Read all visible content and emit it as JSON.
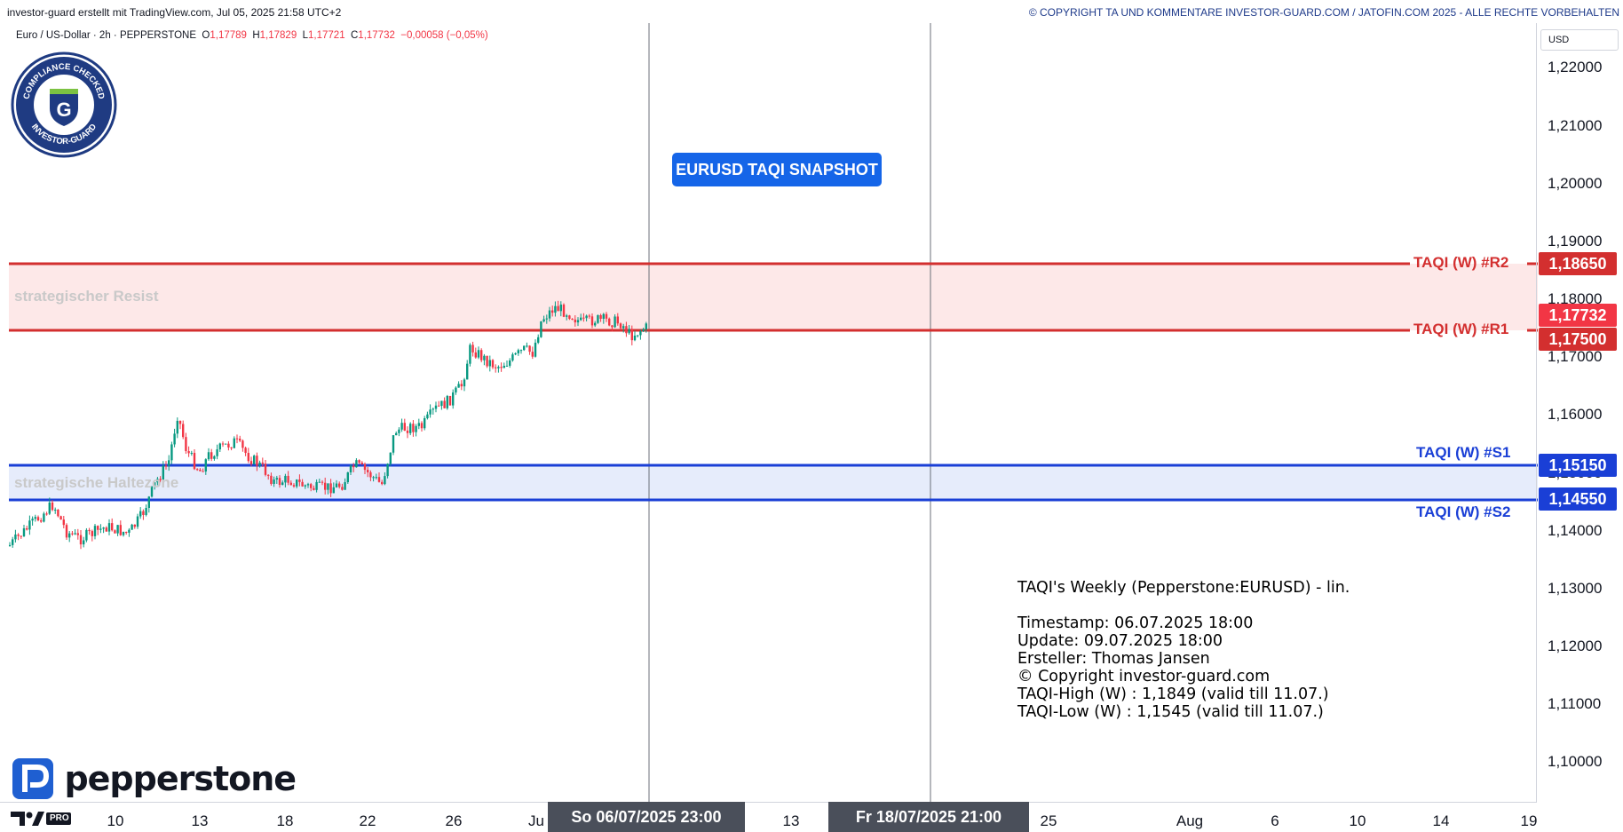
{
  "header": {
    "left_text": "investor-guard erstellt mit TradingView.com, Jul 05, 2025 21:58 UTC+2",
    "right_text": "© COPYRIGHT TA UND KOMMENTARE INVESTOR-GUARD.COM / JATOFIN.COM 2025 - ALLE RECHTE VORBEHALTEN"
  },
  "symbol": {
    "name": "Euro / US-Dollar · 2h · PEPPERSTONE",
    "o_label": "O",
    "o": "1,17789",
    "h_label": "H",
    "h": "1,17829",
    "l_label": "L",
    "l": "1,17721",
    "c_label": "C",
    "c": "1,17732",
    "change": "−0,00058 (−0,05%)"
  },
  "snapshot_button": "EURUSD TAQI SNAPSHOT",
  "zones": {
    "resist_label": "strategischer Resist",
    "support_label": "strategische Haltezone"
  },
  "levels": [
    {
      "label": "TAQI (W) #R2",
      "price": "1,18650",
      "color": "#d32f2f"
    },
    {
      "label": "TAQI (W) #R1",
      "price": "1,17500",
      "color": "#d32f2f"
    },
    {
      "label": "TAQI (W) #S1",
      "price": "1,15150",
      "color": "#1a3fd6"
    },
    {
      "label": "TAQI (W) #S2",
      "price": "1,14550",
      "color": "#1a3fd6"
    }
  ],
  "last_price": {
    "value": "1,17732",
    "color": "#f23645"
  },
  "yaxis": {
    "currency": "USD",
    "ticks": [
      "1,22000",
      "1,21000",
      "1,20000",
      "1,19000",
      "1,18000",
      "1,17000",
      "1,16000",
      "1,15000",
      "1,14000",
      "1,13000",
      "1,12000",
      "1,11000",
      "1,10000"
    ]
  },
  "xaxis": {
    "ticks": [
      "10",
      "13",
      "18",
      "22",
      "26",
      "Ju",
      "13",
      "25",
      "Aug",
      "6",
      "10",
      "14",
      "19"
    ],
    "selected_1": "So 06/07/2025   23:00",
    "selected_2": "Fr 18/07/2025   21:00"
  },
  "info": {
    "title": "TAQI's Weekly (Pepperstone:EURUSD) - lin.",
    "timestamp": "Timestamp: 06.07.2025 18:00",
    "update": "Update: 09.07.2025 18:00",
    "author": "Ersteller: Thomas Jansen",
    "copyright": "© Copyright investor-guard.com",
    "high": "TAQI-High (W) : 1,1849 (valid till 11.07.)",
    "low": "TAQI-Low (W) : 1,1545 (valid till 11.07.)"
  },
  "logos": {
    "broker": "pepperstone",
    "seal_top": "COMPLIANCE CHECKED",
    "seal_bottom": "INVESTOR-GUARD",
    "tv_badge": "PRO"
  },
  "colors": {
    "up": "#089981",
    "down": "#f23645",
    "resist_zone": "#fde8e8",
    "support_zone": "#e6ecfb"
  }
}
